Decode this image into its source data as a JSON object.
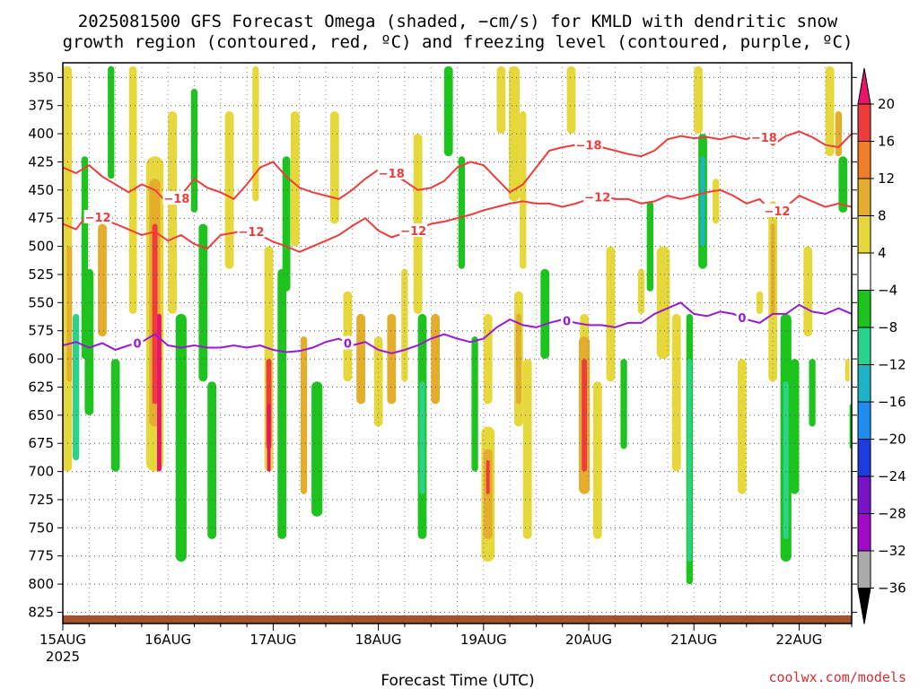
{
  "chart_data": {
    "type": "heatmap",
    "title_line1": "2025081500 GFS Forecast Omega (shaded, −cm/s) for KMLD with dendritic snow",
    "title_line2": "growth region (contoured, red, ºC) and freezing level (contoured, purple, ºC)",
    "xlabel": "Forecast Time (UTC)",
    "credit": "coolwx.com/models",
    "x_ticks": [
      "15AUG",
      "16AUG",
      "17AUG",
      "18AUG",
      "19AUG",
      "20AUG",
      "21AUG",
      "22AUG"
    ],
    "x_year": "2025",
    "xlim_hours": [
      0,
      180
    ],
    "y_ticks": [
      "350",
      "375",
      "400",
      "425",
      "450",
      "475",
      "500",
      "525",
      "550",
      "575",
      "600",
      "625",
      "650",
      "675",
      "700",
      "725",
      "750",
      "775",
      "800",
      "825"
    ],
    "ylim_hpa": [
      337,
      835
    ],
    "grid": true,
    "colorbar": {
      "labels": [
        "20",
        "16",
        "12",
        "8",
        "4",
        "−4",
        "−8",
        "−12",
        "−16",
        "−20",
        "−24",
        "−28",
        "−32",
        "−36"
      ],
      "colors": [
        "#e6176b",
        "#ee3c3c",
        "#f07e28",
        "#e4ae2c",
        "#e6d83a",
        "#ffffff",
        "#1ec41e",
        "#2ad28c",
        "#1eb4c8",
        "#1e8cf0",
        "#1e3cdc",
        "#7814c8",
        "#a00ac8",
        "#aaaaaa",
        "#000000"
      ]
    },
    "ground_color": "#a0522d",
    "series": [
      {
        "name": "-18",
        "color": "#ee3c3c",
        "x": [
          0,
          3,
          6,
          9,
          12,
          15,
          18,
          21,
          24,
          27,
          30,
          33,
          36,
          39,
          42,
          45,
          48,
          51,
          54,
          57,
          60,
          63,
          66,
          69,
          72,
          75,
          78,
          81,
          84,
          87,
          90,
          93,
          96,
          99,
          102,
          105,
          108,
          111,
          114,
          117,
          120,
          123,
          126,
          129,
          132,
          135,
          138,
          141,
          144,
          147,
          150,
          153,
          156,
          159,
          162,
          165,
          168,
          171,
          174,
          177,
          180
        ],
        "y": [
          430,
          435,
          428,
          438,
          445,
          452,
          445,
          450,
          462,
          455,
          440,
          448,
          452,
          458,
          445,
          430,
          425,
          438,
          448,
          452,
          455,
          458,
          450,
          440,
          432,
          435,
          442,
          450,
          448,
          442,
          430,
          425,
          428,
          440,
          452,
          445,
          430,
          415,
          412,
          410,
          410,
          412,
          415,
          418,
          420,
          415,
          405,
          402,
          404,
          403,
          405,
          402,
          405,
          400,
          410,
          402,
          398,
          403,
          410,
          412,
          400
        ],
        "labels": [
          {
            "x": 26,
            "text": "−18"
          },
          {
            "x": 75,
            "text": "−18"
          },
          {
            "x": 120,
            "text": "−18"
          },
          {
            "x": 160,
            "text": "−18"
          }
        ]
      },
      {
        "name": "-12",
        "color": "#ee3c3c",
        "x": [
          0,
          3,
          6,
          9,
          12,
          15,
          18,
          21,
          24,
          27,
          30,
          33,
          36,
          39,
          42,
          45,
          48,
          51,
          54,
          57,
          60,
          63,
          66,
          69,
          72,
          75,
          78,
          81,
          84,
          87,
          90,
          93,
          96,
          99,
          102,
          105,
          108,
          111,
          114,
          117,
          120,
          123,
          126,
          129,
          132,
          135,
          138,
          141,
          144,
          147,
          150,
          153,
          156,
          159,
          162,
          165,
          168,
          171,
          174,
          177,
          180
        ],
        "y": [
          480,
          485,
          470,
          476,
          480,
          485,
          490,
          487,
          495,
          490,
          498,
          502,
          490,
          488,
          485,
          490,
          496,
          500,
          505,
          500,
          495,
          490,
          482,
          475,
          486,
          492,
          488,
          485,
          480,
          478,
          475,
          472,
          468,
          465,
          462,
          460,
          462,
          462,
          465,
          462,
          458,
          455,
          458,
          458,
          462,
          460,
          455,
          458,
          455,
          452,
          450,
          455,
          462,
          458,
          470,
          465,
          455,
          460,
          465,
          462,
          465
        ],
        "labels": [
          {
            "x": 8,
            "text": "−12"
          },
          {
            "x": 43,
            "text": "−12"
          },
          {
            "x": 80,
            "text": "−12"
          },
          {
            "x": 122,
            "text": "−12"
          },
          {
            "x": 163,
            "text": "−12"
          }
        ]
      },
      {
        "name": "0",
        "color": "#9a1ad2",
        "x": [
          0,
          3,
          6,
          9,
          12,
          15,
          18,
          21,
          24,
          27,
          30,
          33,
          36,
          39,
          42,
          45,
          48,
          51,
          54,
          57,
          60,
          63,
          66,
          69,
          72,
          75,
          78,
          81,
          84,
          87,
          90,
          93,
          96,
          99,
          102,
          105,
          108,
          111,
          114,
          117,
          120,
          123,
          126,
          129,
          132,
          135,
          138,
          141,
          144,
          147,
          150,
          153,
          156,
          159,
          162,
          165,
          168,
          171,
          174,
          177,
          180
        ],
        "y": [
          588,
          585,
          590,
          586,
          592,
          588,
          585,
          578,
          588,
          590,
          588,
          590,
          590,
          588,
          590,
          588,
          592,
          594,
          593,
          590,
          585,
          582,
          588,
          585,
          592,
          595,
          592,
          588,
          582,
          578,
          582,
          585,
          582,
          572,
          565,
          570,
          572,
          568,
          565,
          568,
          570,
          570,
          572,
          568,
          568,
          560,
          555,
          550,
          560,
          562,
          558,
          560,
          565,
          568,
          560,
          560,
          552,
          558,
          560,
          555,
          560
        ],
        "labels": [
          {
            "x": 17,
            "text": "0"
          },
          {
            "x": 65,
            "text": "0"
          },
          {
            "x": 115,
            "text": "0"
          },
          {
            "x": 155,
            "text": "0"
          }
        ]
      }
    ]
  }
}
